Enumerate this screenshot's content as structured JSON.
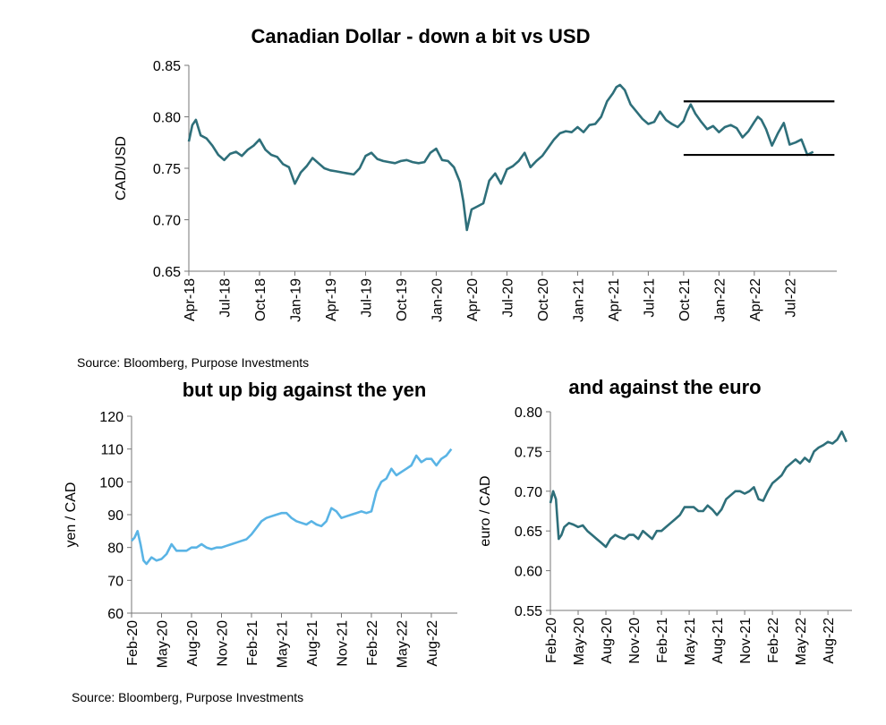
{
  "source_top": "Source: Bloomberg, Purpose Investments",
  "source_bottom": "Source: Bloomberg, Purpose Investments",
  "chart_data": [
    {
      "type": "line",
      "title": "Canadian Dollar - down a bit vs USD",
      "ylabel": "CAD/USD",
      "ylim": [
        0.65,
        0.85
      ],
      "yticks": [
        "0.65",
        "0.70",
        "0.75",
        "0.80",
        "0.85"
      ],
      "xlim": [
        0,
        53
      ],
      "xticks": [
        {
          "label": "Apr-18",
          "t": 0
        },
        {
          "label": "Jul-18",
          "t": 3
        },
        {
          "label": "Oct-18",
          "t": 6
        },
        {
          "label": "Jan-19",
          "t": 9
        },
        {
          "label": "Apr-19",
          "t": 12
        },
        {
          "label": "Jul-19",
          "t": 15
        },
        {
          "label": "Oct-19",
          "t": 18
        },
        {
          "label": "Jan-20",
          "t": 21
        },
        {
          "label": "Apr-20",
          "t": 24
        },
        {
          "label": "Jul-20",
          "t": 27
        },
        {
          "label": "Oct-20",
          "t": 30
        },
        {
          "label": "Jan-21",
          "t": 33
        },
        {
          "label": "Apr-21",
          "t": 36
        },
        {
          "label": "Jul-21",
          "t": 39
        },
        {
          "label": "Oct-21",
          "t": 42
        },
        {
          "label": "Jan-22",
          "t": 45
        },
        {
          "label": "Apr-22",
          "t": 48
        },
        {
          "label": "Jul-22",
          "t": 51
        }
      ],
      "color": "#2e6f7a",
      "series": [
        {
          "x": [
            0,
            0.3,
            0.6,
            1,
            1.5,
            2,
            2.5,
            3,
            3.5,
            4,
            4.5,
            5,
            5.5,
            6,
            6.5,
            7,
            7.5,
            8,
            8.5,
            9,
            9.5,
            10,
            10.5,
            11,
            11.5,
            12,
            12.5,
            13,
            13.5,
            14,
            14.5,
            15,
            15.5,
            16,
            16.5,
            17,
            17.5,
            18,
            18.5,
            19,
            19.5,
            20,
            20.5,
            21,
            21.5,
            22,
            22.5,
            23,
            23.3,
            23.6,
            24,
            24.5,
            25,
            25.5,
            26,
            26.5,
            27,
            27.5,
            28,
            28.5,
            29,
            29.5,
            30,
            30.5,
            31,
            31.5,
            32,
            32.5,
            33,
            33.5,
            34,
            34.5,
            35,
            35.5,
            36,
            36.3,
            36.6,
            37,
            37.5,
            38,
            38.5,
            39,
            39.5,
            40,
            40.5,
            41,
            41.5,
            42,
            42.3,
            42.6,
            43,
            43.5,
            44,
            44.5,
            45,
            45.5,
            46,
            46.5,
            47,
            47.5,
            48,
            48.3,
            48.6,
            49,
            49.5,
            50,
            50.5,
            51,
            51.5,
            52,
            52.5,
            53
          ],
          "values": [
            0.776,
            0.792,
            0.797,
            0.782,
            0.779,
            0.772,
            0.763,
            0.758,
            0.764,
            0.766,
            0.762,
            0.768,
            0.772,
            0.778,
            0.768,
            0.763,
            0.761,
            0.754,
            0.751,
            0.735,
            0.746,
            0.752,
            0.76,
            0.755,
            0.75,
            0.748,
            0.747,
            0.746,
            0.745,
            0.744,
            0.75,
            0.762,
            0.765,
            0.759,
            0.757,
            0.756,
            0.755,
            0.757,
            0.758,
            0.756,
            0.755,
            0.756,
            0.765,
            0.769,
            0.758,
            0.757,
            0.751,
            0.737,
            0.718,
            0.69,
            0.71,
            0.713,
            0.716,
            0.738,
            0.745,
            0.735,
            0.749,
            0.752,
            0.757,
            0.765,
            0.751,
            0.757,
            0.762,
            0.77,
            0.778,
            0.784,
            0.786,
            0.785,
            0.79,
            0.785,
            0.792,
            0.793,
            0.8,
            0.815,
            0.823,
            0.829,
            0.831,
            0.826,
            0.812,
            0.805,
            0.798,
            0.793,
            0.795,
            0.805,
            0.797,
            0.793,
            0.79,
            0.796,
            0.805,
            0.812,
            0.803,
            0.795,
            0.788,
            0.791,
            0.785,
            0.79,
            0.792,
            0.789,
            0.78,
            0.786,
            0.795,
            0.8,
            0.797,
            0.788,
            0.772,
            0.784,
            0.794,
            0.773,
            0.775,
            0.778,
            0.763,
            0.766
          ]
        }
      ],
      "annotations": [
        {
          "type": "hline",
          "y": 0.815,
          "x_from": 42,
          "x_to": 54.8
        },
        {
          "type": "hline",
          "y": 0.763,
          "x_from": 42,
          "x_to": 54.8
        }
      ]
    },
    {
      "type": "line",
      "title": "but up big against the yen",
      "ylabel": "yen / CAD",
      "ylim": [
        60,
        120
      ],
      "yticks": [
        "60",
        "70",
        "80",
        "90",
        "100",
        "110",
        "120"
      ],
      "xlim": [
        0,
        32
      ],
      "xticks": [
        {
          "label": "Feb-20",
          "t": 0
        },
        {
          "label": "May-20",
          "t": 3
        },
        {
          "label": "Aug-20",
          "t": 6
        },
        {
          "label": "Nov-20",
          "t": 9
        },
        {
          "label": "Feb-21",
          "t": 12
        },
        {
          "label": "May-21",
          "t": 15
        },
        {
          "label": "Aug-21",
          "t": 18
        },
        {
          "label": "Nov-21",
          "t": 21
        },
        {
          "label": "Feb-22",
          "t": 24
        },
        {
          "label": "May-22",
          "t": 27
        },
        {
          "label": "Aug-22",
          "t": 30
        }
      ],
      "color": "#5ab4e5",
      "series": [
        {
          "x": [
            0,
            0.3,
            0.6,
            0.9,
            1.2,
            1.5,
            2,
            2.5,
            3,
            3.5,
            4,
            4.5,
            5,
            5.5,
            6,
            6.5,
            7,
            7.5,
            8,
            8.5,
            9,
            9.5,
            10,
            10.5,
            11,
            11.5,
            12,
            12.5,
            13,
            13.5,
            14,
            14.5,
            15,
            15.5,
            16,
            16.5,
            17,
            17.5,
            18,
            18.5,
            19,
            19.5,
            20,
            20.5,
            21,
            21.5,
            22,
            22.5,
            23,
            23.5,
            24,
            24.5,
            25,
            25.5,
            26,
            26.5,
            27,
            27.5,
            28,
            28.5,
            29,
            29.5,
            30,
            30.5,
            31,
            31.5,
            32
          ],
          "values": [
            82,
            83,
            85,
            81,
            76,
            75,
            77,
            76,
            76.5,
            78,
            81,
            79,
            79,
            79,
            80,
            80,
            81,
            80,
            79.5,
            80,
            80,
            80.5,
            81,
            81.5,
            82,
            82.5,
            84,
            86,
            88,
            89,
            89.5,
            90,
            90.5,
            90.5,
            89,
            88,
            87.5,
            87,
            88,
            87,
            86.5,
            88,
            92,
            91,
            89,
            89.5,
            90,
            90.5,
            91,
            90.5,
            91,
            97,
            100,
            101,
            104,
            102,
            103,
            104,
            105,
            108,
            106,
            107,
            107,
            105,
            107,
            108,
            110
          ]
        }
      ]
    },
    {
      "type": "line",
      "title": "and against the euro",
      "ylabel": "euro / CAD",
      "ylim": [
        0.55,
        0.8
      ],
      "yticks": [
        "0.55",
        "0.60",
        "0.65",
        "0.70",
        "0.75",
        "0.80"
      ],
      "xlim": [
        0,
        32
      ],
      "xticks": [
        {
          "label": "Feb-20",
          "t": 0
        },
        {
          "label": "May-20",
          "t": 3
        },
        {
          "label": "Aug-20",
          "t": 6
        },
        {
          "label": "Nov-20",
          "t": 9
        },
        {
          "label": "Feb-21",
          "t": 12
        },
        {
          "label": "May-21",
          "t": 15
        },
        {
          "label": "Aug-21",
          "t": 18
        },
        {
          "label": "Nov-21",
          "t": 21
        },
        {
          "label": "Feb-22",
          "t": 24
        },
        {
          "label": "May-22",
          "t": 27
        },
        {
          "label": "Aug-22",
          "t": 30
        }
      ],
      "color": "#2e6f7a",
      "series": [
        {
          "x": [
            0,
            0.3,
            0.6,
            0.9,
            1.2,
            1.5,
            2,
            2.5,
            3,
            3.5,
            4,
            4.5,
            5,
            5.5,
            6,
            6.5,
            7,
            7.5,
            8,
            8.5,
            9,
            9.5,
            10,
            10.5,
            11,
            11.5,
            12,
            12.5,
            13,
            13.5,
            14,
            14.5,
            15,
            15.5,
            16,
            16.5,
            17,
            17.5,
            18,
            18.5,
            19,
            19.5,
            20,
            20.5,
            21,
            21.5,
            22,
            22.5,
            23,
            23.5,
            24,
            24.5,
            25,
            25.5,
            26,
            26.5,
            27,
            27.5,
            28,
            28.5,
            29,
            29.5,
            30,
            30.5,
            31,
            31.5,
            32
          ],
          "values": [
            0.685,
            0.7,
            0.69,
            0.64,
            0.645,
            0.655,
            0.66,
            0.658,
            0.655,
            0.657,
            0.65,
            0.645,
            0.64,
            0.635,
            0.63,
            0.64,
            0.645,
            0.642,
            0.64,
            0.645,
            0.645,
            0.64,
            0.65,
            0.645,
            0.64,
            0.65,
            0.65,
            0.655,
            0.66,
            0.665,
            0.67,
            0.68,
            0.68,
            0.68,
            0.675,
            0.675,
            0.682,
            0.677,
            0.67,
            0.677,
            0.69,
            0.695,
            0.7,
            0.7,
            0.697,
            0.7,
            0.705,
            0.69,
            0.688,
            0.7,
            0.71,
            0.715,
            0.72,
            0.73,
            0.735,
            0.74,
            0.735,
            0.742,
            0.737,
            0.75,
            0.755,
            0.758,
            0.762,
            0.76,
            0.765,
            0.775,
            0.762
          ]
        }
      ]
    }
  ]
}
